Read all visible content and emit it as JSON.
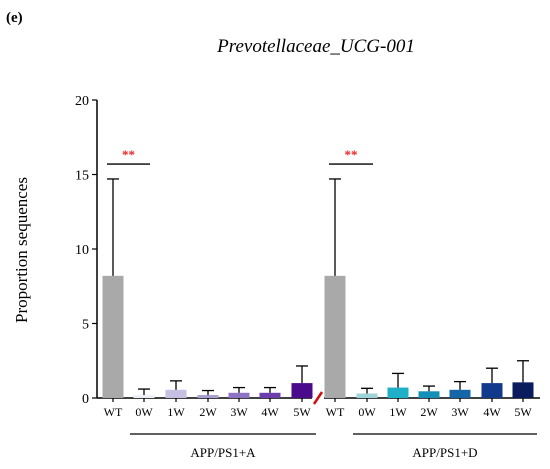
{
  "panel_label": "(e)",
  "chart_data": {
    "type": "bar",
    "title": "Prevotellaceae_UCG-001",
    "ylabel": "Proportion sequences",
    "xlabel": "",
    "ylim": [
      0,
      20
    ],
    "yticks": [
      0,
      5,
      10,
      15,
      20
    ],
    "grid": false,
    "legend": "none",
    "categories": [
      "WT",
      "0W",
      "1W",
      "2W",
      "3W",
      "4W",
      "5W",
      "WT",
      "0W",
      "1W",
      "2W",
      "3W",
      "4W",
      "5W"
    ],
    "values": [
      8.2,
      0.2,
      0.55,
      0.2,
      0.35,
      0.35,
      1.0,
      8.2,
      0.3,
      0.7,
      0.45,
      0.55,
      1.0,
      1.05
    ],
    "errors": [
      6.5,
      0.4,
      0.6,
      0.3,
      0.35,
      0.35,
      1.15,
      6.5,
      0.35,
      0.95,
      0.35,
      0.55,
      1.0,
      1.45
    ],
    "colors": [
      "#a9a9a9",
      "#eeeef7",
      "#c8c0e2",
      "#a89fd0",
      "#8c73c3",
      "#6d3fae",
      "#4a0a8c",
      "#a9a9a9",
      "#9cd4d8",
      "#1fb0c8",
      "#138fb8",
      "#1566a8",
      "#123a8c",
      "#0b1c5e"
    ],
    "groups": [
      {
        "label": "APP/PS1+A",
        "start": 1,
        "end": 6
      },
      {
        "label": "APP/PS1+D",
        "start": 8,
        "end": 13
      }
    ],
    "significance": [
      {
        "label": "**",
        "from": 0,
        "to": 1,
        "y": 15.7
      },
      {
        "label": "**",
        "from": 7,
        "to": 8,
        "y": 15.7
      }
    ],
    "axis_break_color": "#cc1111",
    "significance_color": "#ee2222"
  }
}
